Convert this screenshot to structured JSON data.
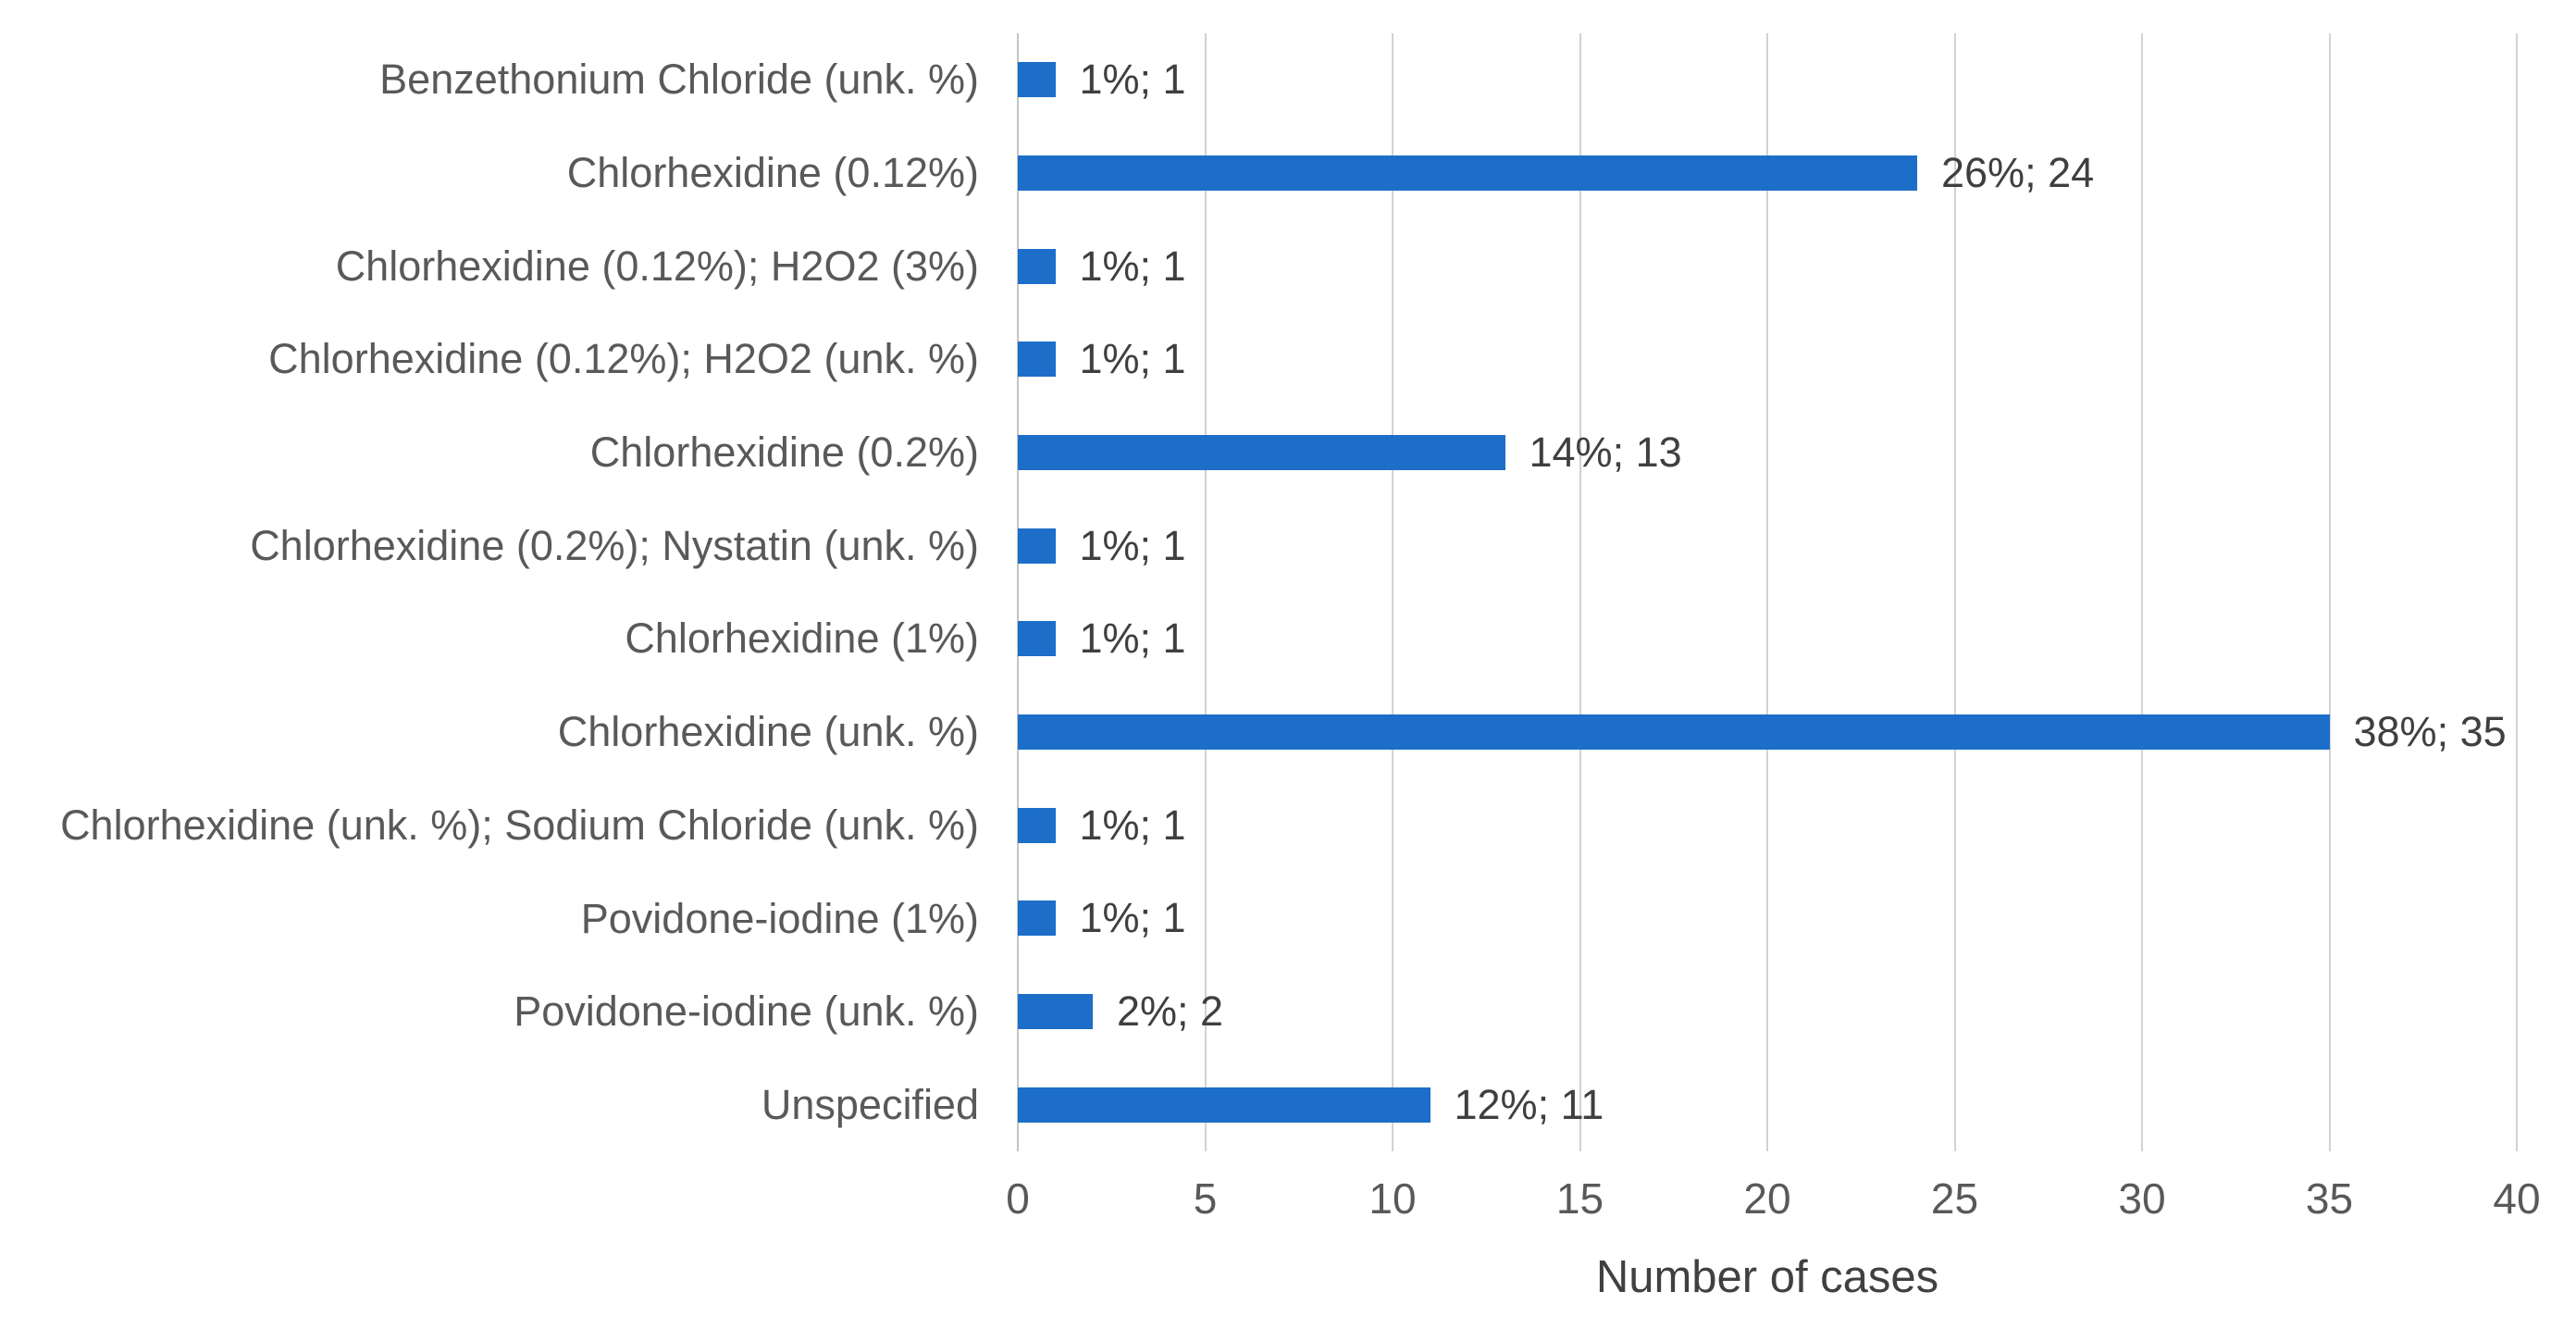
{
  "chart_data": {
    "type": "bar",
    "orientation": "horizontal",
    "title": "",
    "xlabel": "Number of cases",
    "xlim": [
      0,
      40
    ],
    "xticks": [
      0,
      5,
      10,
      15,
      20,
      25,
      30,
      35,
      40
    ],
    "grid": true,
    "legend": false,
    "categories": [
      "Benzethonium Chloride (unk. %)",
      "Chlorhexidine (0.12%)",
      "Chlorhexidine (0.12%); H2O2 (3%)",
      "Chlorhexidine (0.12%); H2O2 (unk. %)",
      "Chlorhexidine (0.2%)",
      "Chlorhexidine (0.2%); Nystatin (unk. %)",
      "Chlorhexidine (1%)",
      "Chlorhexidine (unk. %)",
      "Chlorhexidine (unk. %); Sodium Chloride (unk. %)",
      "Povidone-iodine (1%)",
      "Povidone-iodine (unk. %)",
      "Unspecified"
    ],
    "values": [
      1,
      24,
      1,
      1,
      13,
      1,
      1,
      35,
      1,
      1,
      2,
      11
    ],
    "data_labels": [
      "1%; 1",
      "26%; 24",
      "1%; 1",
      "1%; 1",
      "14%; 13",
      "1%; 1",
      "1%; 1",
      "38%; 35",
      "1%; 1",
      "1%; 1",
      "2%; 2",
      "12%; 11"
    ]
  },
  "colors": {
    "bar": "#1c6ec9",
    "gridline": "#d2d2d2",
    "axis_line": "#c4c4c4",
    "category_text": "#595959",
    "value_text": "#3f3f3f",
    "tick_text": "#595959",
    "axis_title_text": "#404040",
    "background": "#ffffff"
  }
}
